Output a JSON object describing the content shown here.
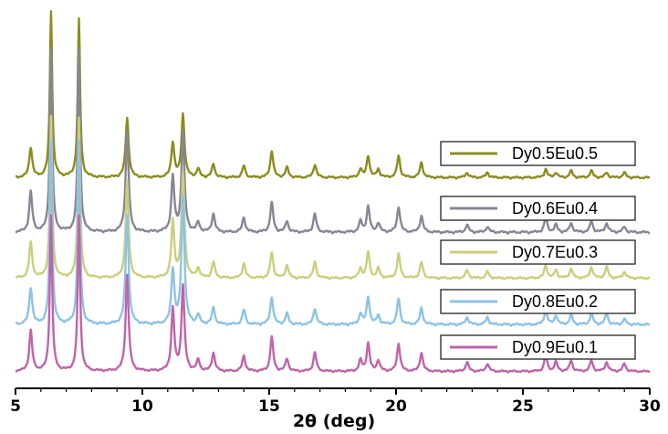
{
  "chart_data": {
    "type": "line",
    "title": "",
    "xlabel": "2θ (deg)",
    "ylabel": "",
    "xlim": [
      5,
      30
    ],
    "xticks": [
      5,
      10,
      15,
      20,
      25,
      30
    ],
    "y_axis_visible": false,
    "grid": false,
    "legend_placement": "right, beside each trace",
    "peak_positions_2theta": [
      5.6,
      6.4,
      7.5,
      9.4,
      11.2,
      11.6,
      12.2,
      12.8,
      14.0,
      15.1,
      15.7,
      16.8,
      18.6,
      18.9,
      19.3,
      20.1,
      21.0,
      22.8,
      23.6,
      25.9,
      26.3,
      26.9,
      27.7,
      28.3,
      29.0
    ],
    "series": [
      {
        "name": "Dy0.5Eu0.5",
        "color": "#8c8c1e",
        "legend_label": "Dy0.5Eu0.5",
        "relative_intensity": [
          0.18,
          1.0,
          0.95,
          0.36,
          0.21,
          0.38,
          0.05,
          0.08,
          0.07,
          0.16,
          0.06,
          0.08,
          0.05,
          0.13,
          0.05,
          0.13,
          0.09,
          0.03,
          0.03,
          0.05,
          0.03,
          0.04,
          0.04,
          0.03,
          0.03
        ]
      },
      {
        "name": "Dy0.6Eu0.4",
        "color": "#8a8494",
        "legend_label": "Dy0.6Eu0.4",
        "relative_intensity": [
          0.22,
          1.0,
          1.0,
          0.55,
          0.3,
          0.55,
          0.05,
          0.1,
          0.08,
          0.16,
          0.06,
          0.1,
          0.06,
          0.14,
          0.05,
          0.14,
          0.09,
          0.04,
          0.03,
          0.08,
          0.04,
          0.05,
          0.06,
          0.05,
          0.03
        ]
      },
      {
        "name": "Dy0.7Eu0.3",
        "color": "#cbcf7c",
        "legend_label": "Dy0.7Eu0.3",
        "relative_intensity": [
          0.22,
          1.0,
          1.0,
          0.6,
          0.35,
          0.65,
          0.06,
          0.1,
          0.09,
          0.16,
          0.08,
          0.1,
          0.06,
          0.16,
          0.06,
          0.15,
          0.1,
          0.05,
          0.04,
          0.08,
          0.05,
          0.06,
          0.07,
          0.07,
          0.04
        ]
      },
      {
        "name": "Dy0.8Eu0.2",
        "color": "#8cc3e6",
        "legend_label": "Dy0.8Eu0.2",
        "relative_intensity": [
          0.2,
          1.0,
          1.0,
          0.6,
          0.3,
          0.7,
          0.05,
          0.09,
          0.08,
          0.15,
          0.06,
          0.09,
          0.06,
          0.15,
          0.05,
          0.14,
          0.09,
          0.04,
          0.04,
          0.08,
          0.05,
          0.05,
          0.06,
          0.06,
          0.03
        ]
      },
      {
        "name": "Dy0.9Eu0.1",
        "color": "#c064a8",
        "legend_label": "Dy0.9Eu0.1",
        "relative_intensity": [
          0.26,
          1.0,
          1.0,
          0.62,
          0.4,
          0.55,
          0.07,
          0.12,
          0.1,
          0.22,
          0.08,
          0.12,
          0.07,
          0.18,
          0.07,
          0.18,
          0.12,
          0.06,
          0.05,
          0.1,
          0.06,
          0.07,
          0.07,
          0.06,
          0.05
        ]
      }
    ]
  }
}
